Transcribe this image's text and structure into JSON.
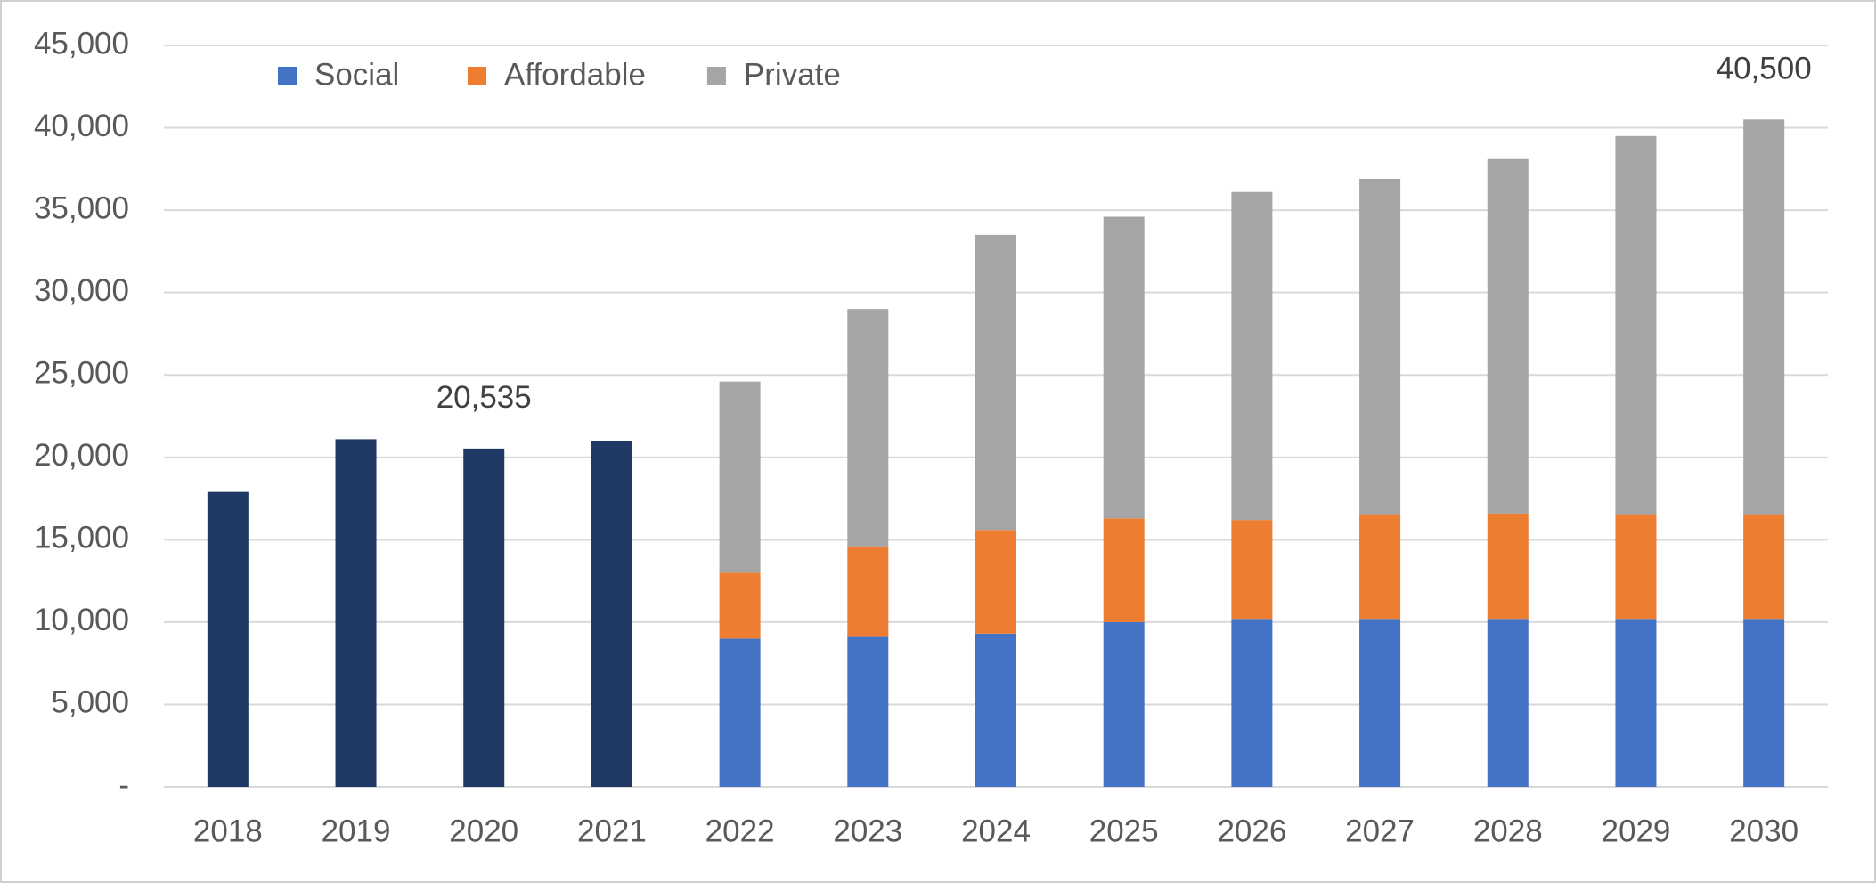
{
  "chart_data": {
    "type": "bar",
    "stacked": true,
    "categories": [
      "2018",
      "2019",
      "2020",
      "2021",
      "2022",
      "2023",
      "2024",
      "2025",
      "2026",
      "2027",
      "2028",
      "2029",
      "2030"
    ],
    "series": [
      {
        "color": "#1f3864",
        "values": [
          17900,
          21100,
          20535,
          21000,
          null,
          null,
          null,
          null,
          null,
          null,
          null,
          null,
          null
        ]
      },
      {
        "name": "Social",
        "color": "#4472c4",
        "values": [
          null,
          null,
          null,
          null,
          9000,
          9100,
          9300,
          10000,
          10200,
          10200,
          10200,
          10200,
          10200
        ]
      },
      {
        "name": "Affordable",
        "color": "#ed7d31",
        "values": [
          null,
          null,
          null,
          null,
          4000,
          5500,
          6300,
          6300,
          6000,
          6300,
          6400,
          6300,
          6300
        ]
      },
      {
        "name": "Private",
        "color": "#a5a5a5",
        "values": [
          null,
          null,
          null,
          null,
          11600,
          14400,
          17900,
          18300,
          19900,
          20400,
          21500,
          23000,
          24000
        ]
      }
    ],
    "annotations": [
      {
        "x": "2020",
        "y": 20535,
        "text": "20,535"
      },
      {
        "x": "2030",
        "y": 40500,
        "text": "40,500"
      }
    ],
    "ylim": [
      0,
      45000
    ],
    "yticks": [
      {
        "value": 0,
        "label": "-"
      },
      {
        "value": 5000,
        "label": "5,000"
      },
      {
        "value": 10000,
        "label": "10,000"
      },
      {
        "value": 15000,
        "label": "15,000"
      },
      {
        "value": 20000,
        "label": "20,000"
      },
      {
        "value": 25000,
        "label": "25,000"
      },
      {
        "value": 30000,
        "label": "30,000"
      },
      {
        "value": 35000,
        "label": "35,000"
      },
      {
        "value": 40000,
        "label": "40,000"
      },
      {
        "value": 45000,
        "label": "45,000"
      }
    ],
    "grid": true,
    "legend": "top-left"
  }
}
